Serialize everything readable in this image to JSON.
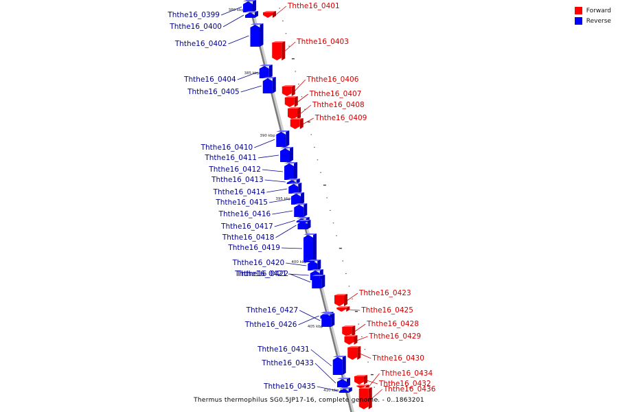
{
  "legend": {
    "forward": {
      "label": "Forward",
      "color": "#ff0000"
    },
    "reverse": {
      "label": "Reverse",
      "color": "#0000ff"
    }
  },
  "caption": "Thermus thermophilus SG0.5JP17-16, complete genome. - 0..1863201",
  "kbp_ticks": [
    "380 kbp",
    "385 kbp",
    "390 kbp",
    "395 kbp",
    "400 kbp",
    "405 kbp",
    "410 kbp"
  ],
  "genes": [
    {
      "name": "Ththe16_0399",
      "strand": "reverse"
    },
    {
      "name": "Ththe16_0400",
      "strand": "reverse"
    },
    {
      "name": "Ththe16_0401",
      "strand": "forward"
    },
    {
      "name": "Ththe16_0402",
      "strand": "reverse"
    },
    {
      "name": "Ththe16_0403",
      "strand": "forward"
    },
    {
      "name": "Ththe16_0404",
      "strand": "reverse"
    },
    {
      "name": "Ththe16_0405",
      "strand": "reverse"
    },
    {
      "name": "Ththe16_0406",
      "strand": "forward"
    },
    {
      "name": "Ththe16_0407",
      "strand": "forward"
    },
    {
      "name": "Ththe16_0408",
      "strand": "forward"
    },
    {
      "name": "Ththe16_0409",
      "strand": "forward"
    },
    {
      "name": "Ththe16_0410",
      "strand": "reverse"
    },
    {
      "name": "Ththe16_0411",
      "strand": "reverse"
    },
    {
      "name": "Ththe16_0412",
      "strand": "reverse"
    },
    {
      "name": "Ththe16_0413",
      "strand": "reverse"
    },
    {
      "name": "Ththe16_0414",
      "strand": "reverse"
    },
    {
      "name": "Ththe16_0415",
      "strand": "reverse"
    },
    {
      "name": "Ththe16_0416",
      "strand": "reverse"
    },
    {
      "name": "Ththe16_0417",
      "strand": "reverse"
    },
    {
      "name": "Ththe16_0418",
      "strand": "reverse"
    },
    {
      "name": "Ththe16_0419",
      "strand": "reverse"
    },
    {
      "name": "Ththe16_0420",
      "strand": "reverse"
    },
    {
      "name": "Ththe16_0421",
      "strand": "reverse"
    },
    {
      "name": "Ththe16_0422",
      "strand": "reverse"
    },
    {
      "name": "Ththe16_0423",
      "strand": "forward"
    },
    {
      "name": "Ththe16_0425",
      "strand": "forward"
    },
    {
      "name": "Ththe16_0426",
      "strand": "reverse"
    },
    {
      "name": "Ththe16_0427",
      "strand": "reverse"
    },
    {
      "name": "Ththe16_0428",
      "strand": "forward"
    },
    {
      "name": "Ththe16_0429",
      "strand": "forward"
    },
    {
      "name": "Ththe16_0430",
      "strand": "forward"
    },
    {
      "name": "Ththe16_0431",
      "strand": "reverse"
    },
    {
      "name": "Ththe16_0432",
      "strand": "forward"
    },
    {
      "name": "Ththe16_0433",
      "strand": "reverse"
    },
    {
      "name": "Ththe16_0434",
      "strand": "forward"
    },
    {
      "name": "Ththe16_0435",
      "strand": "reverse"
    },
    {
      "name": "Ththe16_0436",
      "strand": "forward"
    }
  ]
}
